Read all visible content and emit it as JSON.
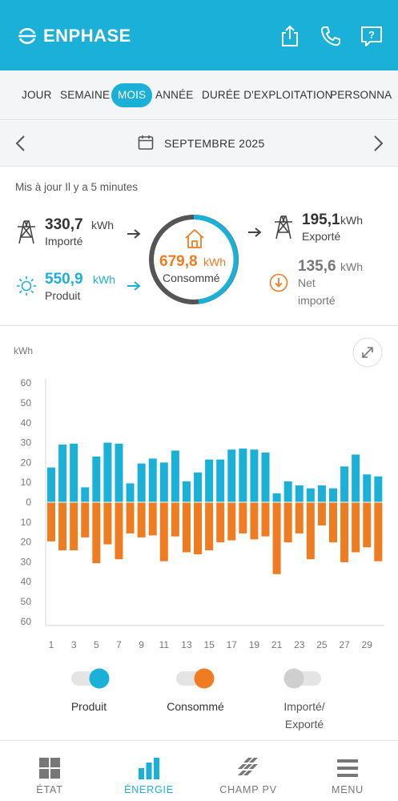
{
  "header": {
    "brand": "ENPHASE",
    "icons": [
      "share-icon",
      "phone-icon",
      "help-icon"
    ],
    "color": "#1bb0d8"
  },
  "tabs": [
    {
      "label": "JOUR",
      "active": false
    },
    {
      "label": "SEMAINE",
      "active": false
    },
    {
      "label": "MOIS",
      "active": true
    },
    {
      "label": "ANNÉE",
      "active": false
    },
    {
      "label": "DURÉE D'EXPLOITATION",
      "active": false
    },
    {
      "label": "PERSONNA",
      "active": false
    }
  ],
  "date": {
    "label": "SEPTEMBRE 2025"
  },
  "summary": {
    "updated": "Mis à jour Il y a 5 minutes",
    "imported": {
      "value": "330,7",
      "unit": "kWh",
      "label": "Importé"
    },
    "produced": {
      "value": "550,9",
      "unit": "kWh",
      "label": "Produit"
    },
    "consumed": {
      "value": "679,8",
      "unit": "kWh",
      "label": "Consommé"
    },
    "exported": {
      "value": "195,1",
      "unit": "kWh",
      "label": "Exporté"
    },
    "net": {
      "value": "135,6",
      "unit": "kWh",
      "label_line1": "Net",
      "label_line2": "importé"
    }
  },
  "chart_data": {
    "type": "bar",
    "ylabel": "kWh",
    "ylim": [
      -60,
      60
    ],
    "y_ticks": [
      "60",
      "50",
      "40",
      "30",
      "20",
      "10",
      "0",
      "10",
      "20",
      "30",
      "40",
      "50",
      "60"
    ],
    "x_tick_labels": [
      "1",
      "3",
      "5",
      "7",
      "9",
      "11",
      "13",
      "15",
      "17",
      "19",
      "21",
      "23",
      "25",
      "27",
      "29"
    ],
    "categories": [
      1,
      2,
      3,
      4,
      5,
      6,
      7,
      8,
      9,
      10,
      11,
      12,
      13,
      14,
      15,
      16,
      17,
      18,
      19,
      20,
      21,
      22,
      23,
      24,
      25,
      26,
      27,
      28,
      29,
      30
    ],
    "series": [
      {
        "name": "Produit",
        "color": "#1bb0d8",
        "values": [
          17.5,
          29,
          29.5,
          7.5,
          23,
          30,
          29.5,
          9.5,
          19.5,
          22,
          20,
          26,
          10.5,
          15,
          21.5,
          21.5,
          26.5,
          27,
          26.5,
          25,
          4.5,
          10.5,
          8.5,
          7,
          8.5,
          7,
          18,
          24,
          14,
          13
        ]
      },
      {
        "name": "Consommé",
        "color": "#f07c22",
        "values": [
          -19.5,
          -24,
          -24,
          -17.5,
          -30.5,
          -21,
          -28.5,
          -15.5,
          -17.5,
          -16.5,
          -29.5,
          -17,
          -25,
          -26,
          -24,
          -20,
          -19,
          -15.5,
          -18.5,
          -17,
          -36,
          -20,
          -15.5,
          -28.5,
          -11.5,
          -20,
          -30,
          -25,
          -22.5,
          -29.5
        ]
      }
    ]
  },
  "toggles": [
    {
      "label": "Produit",
      "on": true,
      "color": "#1bb0d8"
    },
    {
      "label": "Consommé",
      "on": true,
      "color": "#f07c22"
    },
    {
      "label_line1": "Importé/",
      "label_line2": "Exporté",
      "on": false,
      "color": "#cccccc"
    }
  ],
  "nav": [
    {
      "label": "ÉTAT",
      "icon": "grid-icon",
      "active": false
    },
    {
      "label": "ÉNERGIE",
      "icon": "bar-chart-icon",
      "active": true
    },
    {
      "label": "CHAMP PV",
      "icon": "solar-panel-icon",
      "active": false
    },
    {
      "label": "MENU",
      "icon": "menu-icon",
      "active": false
    }
  ]
}
